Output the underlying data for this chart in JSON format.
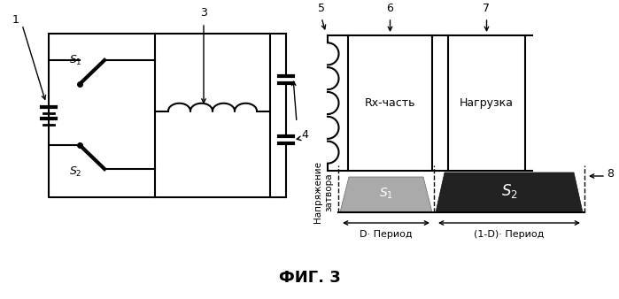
{
  "title": "ФИГ. 3",
  "background_color": "#ffffff",
  "rx_text": "Rx-часть",
  "load_text": "Нагрузка",
  "ylabel": "Напряжение\nзатвора",
  "xlabel_d": "D· Период",
  "xlabel_1d": "(1-D)· Период",
  "s1_color": "#aaaaaa",
  "s2_color": "#222222",
  "line_color": "#000000",
  "lw": 1.5
}
